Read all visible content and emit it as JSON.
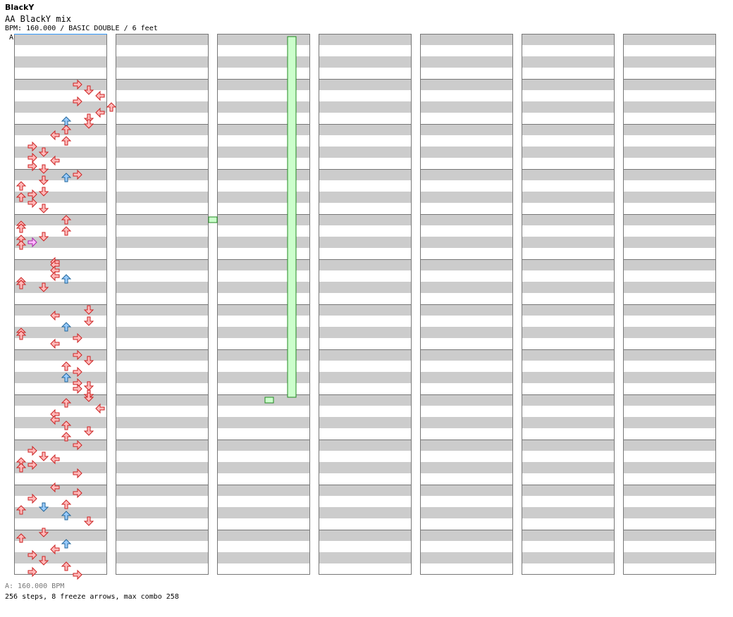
{
  "header": {
    "artist": "BlackY",
    "title": "AA BlackY mix",
    "info": "BPM: 160.000 / BASIC DOUBLE / 6 feet"
  },
  "bpm_marker": "A",
  "footer": {
    "bpm_change": "A: 160.000 BPM",
    "stats": "256 steps, 8 freeze arrows, max combo 258"
  },
  "colors": {
    "band": "#cccccc",
    "border": "#777777",
    "marker_line": "#3399ff",
    "left_arrow": "#ffbbbb",
    "left_stroke": "#cc2222",
    "right_arrow": "#99ccff",
    "right_stroke": "#226699",
    "jump_arrow": "#ffbbff",
    "jump_stroke": "#aa22aa",
    "freeze_fill": "#ccffcc",
    "freeze_stroke": "#228822"
  },
  "chart": {
    "columns": 7,
    "measures_per_column": 12,
    "rows_per_measure": 16,
    "lanes": 8,
    "steps": [
      [
        1,
        1,
        5,
        "L"
      ],
      [
        1,
        3,
        6,
        "L"
      ],
      [
        1,
        5,
        7,
        "L"
      ],
      [
        1,
        7,
        5,
        "L"
      ],
      [
        1,
        9,
        8,
        "L"
      ],
      [
        1,
        11,
        7,
        "L"
      ],
      [
        1,
        13,
        6,
        "L"
      ],
      [
        1,
        14,
        4,
        "R"
      ],
      [
        1,
        15,
        6,
        "L"
      ],
      [
        2,
        1,
        4,
        "L"
      ],
      [
        2,
        3,
        3,
        "L"
      ],
      [
        2,
        5,
        4,
        "L"
      ],
      [
        2,
        7,
        1,
        "L"
      ],
      [
        2,
        9,
        2,
        "L"
      ],
      [
        2,
        11,
        1,
        "L"
      ],
      [
        2,
        12,
        3,
        "L"
      ],
      [
        2,
        14,
        1,
        "L"
      ],
      [
        2,
        15,
        2,
        "L"
      ],
      [
        3,
        1,
        5,
        "L"
      ],
      [
        3,
        2,
        4,
        "R"
      ],
      [
        3,
        3,
        2,
        "L"
      ],
      [
        3,
        5,
        0,
        "L"
      ],
      [
        3,
        7,
        2,
        "L"
      ],
      [
        3,
        8,
        1,
        "L"
      ],
      [
        3,
        9,
        0,
        "L"
      ],
      [
        3,
        11,
        1,
        "L"
      ],
      [
        3,
        13,
        2,
        "L"
      ],
      [
        4,
        1,
        4,
        "L"
      ],
      [
        4,
        3,
        0,
        "L"
      ],
      [
        4,
        4,
        0,
        "L"
      ],
      [
        4,
        5,
        4,
        "L"
      ],
      [
        4,
        7,
        2,
        "L"
      ],
      [
        4,
        8,
        0,
        "L"
      ],
      [
        4,
        9,
        1,
        "J"
      ],
      [
        4,
        10,
        0,
        "L"
      ],
      [
        5,
        0,
        3,
        "L"
      ],
      [
        5,
        1,
        3,
        "L"
      ],
      [
        5,
        3,
        3,
        "L"
      ],
      [
        5,
        5,
        3,
        "L"
      ],
      [
        5,
        6,
        4,
        "R"
      ],
      [
        5,
        7,
        0,
        "L"
      ],
      [
        5,
        8,
        0,
        "L"
      ],
      [
        5,
        9,
        2,
        "L"
      ],
      [
        6,
        1,
        6,
        "L"
      ],
      [
        6,
        3,
        3,
        "L"
      ],
      [
        6,
        5,
        6,
        "L"
      ],
      [
        6,
        7,
        4,
        "R"
      ],
      [
        6,
        9,
        0,
        "L"
      ],
      [
        6,
        10,
        0,
        "L"
      ],
      [
        6,
        11,
        5,
        "L"
      ],
      [
        6,
        13,
        3,
        "L"
      ],
      [
        7,
        1,
        5,
        "L"
      ],
      [
        7,
        3,
        6,
        "L"
      ],
      [
        7,
        5,
        4,
        "L"
      ],
      [
        7,
        7,
        5,
        "L"
      ],
      [
        7,
        9,
        4,
        "R"
      ],
      [
        7,
        11,
        5,
        "L"
      ],
      [
        7,
        12,
        6,
        "L"
      ],
      [
        7,
        13,
        5,
        "L"
      ],
      [
        7,
        15,
        6,
        "L"
      ],
      [
        8,
        0,
        6,
        "L"
      ],
      [
        8,
        2,
        4,
        "L"
      ],
      [
        8,
        4,
        7,
        "L"
      ],
      [
        8,
        6,
        3,
        "L"
      ],
      [
        8,
        8,
        3,
        "L"
      ],
      [
        8,
        10,
        4,
        "L"
      ],
      [
        8,
        12,
        6,
        "L"
      ],
      [
        8,
        14,
        4,
        "L"
      ],
      [
        9,
        1,
        5,
        "L"
      ],
      [
        9,
        3,
        1,
        "L"
      ],
      [
        9,
        5,
        2,
        "L"
      ],
      [
        9,
        6,
        3,
        "L"
      ],
      [
        9,
        7,
        0,
        "L"
      ],
      [
        9,
        8,
        1,
        "L"
      ],
      [
        9,
        9,
        0,
        "L"
      ],
      [
        9,
        11,
        5,
        "L"
      ],
      [
        10,
        0,
        3,
        "L"
      ],
      [
        10,
        2,
        5,
        "L"
      ],
      [
        10,
        4,
        1,
        "L"
      ],
      [
        10,
        6,
        4,
        "L"
      ],
      [
        10,
        7,
        2,
        "R"
      ],
      [
        10,
        8,
        0,
        "L"
      ],
      [
        10,
        10,
        4,
        "R"
      ],
      [
        10,
        12,
        6,
        "L"
      ],
      [
        11,
        0,
        2,
        "L"
      ],
      [
        11,
        2,
        0,
        "L"
      ],
      [
        11,
        4,
        4,
        "R"
      ],
      [
        11,
        6,
        3,
        "L"
      ],
      [
        11,
        8,
        1,
        "L"
      ],
      [
        11,
        10,
        2,
        "L"
      ],
      [
        11,
        12,
        4,
        "L"
      ],
      [
        11,
        14,
        1,
        "L"
      ],
      [
        11,
        15,
        5,
        "L"
      ]
    ],
    "freezes": [
      [
        16,
        8,
        24,
        8
      ],
      [
        24,
        6,
        32,
        6
      ],
      [
        32,
        4,
        40,
        4
      ]
    ]
  }
}
